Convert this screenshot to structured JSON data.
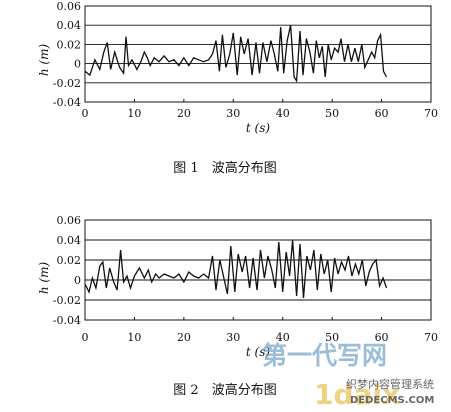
{
  "chart_data": [
    {
      "type": "line",
      "caption": "图 1　波高分布图",
      "xlabel": "t (s)",
      "ylabel": "h (m)",
      "xlim": [
        0,
        70
      ],
      "ylim": [
        -0.04,
        0.06
      ],
      "xticks": [
        0,
        10,
        20,
        30,
        40,
        50,
        60,
        70
      ],
      "yticks": [
        -0.04,
        -0.02,
        0,
        0.02,
        0.04,
        0.06
      ],
      "ytick_labels": [
        "-0.04",
        "-0.02",
        "0",
        "0.02",
        "0.04",
        "0.06"
      ],
      "grid": "horizontal",
      "series": [
        {
          "x": [
            0,
            1,
            2,
            3,
            3.8,
            4.5,
            5.2,
            6,
            7,
            7.8,
            8.3,
            8.8,
            9.5,
            10.5,
            11.3,
            12,
            12.6,
            13.2,
            14,
            15,
            16,
            17,
            18,
            19,
            20,
            21,
            22,
            23,
            24,
            25,
            25.8,
            26.5,
            27.2,
            27.8,
            28.5,
            29.3,
            30,
            30.8,
            31.5,
            32.2,
            33,
            33.8,
            34.6,
            35.3,
            36,
            36.8,
            37.6,
            38.3,
            39,
            39.6,
            40.2,
            40.9,
            41.6,
            42.3,
            42.8,
            43.5,
            44.1,
            44.8,
            45.5,
            46.2,
            46.8,
            47.4,
            48,
            48.6,
            49.2,
            49.8,
            50.5,
            51.2,
            51.8,
            52.5,
            53.2,
            53.9,
            54.6,
            55.3,
            56,
            56.6,
            57.3,
            58,
            58.6,
            59.2,
            59.8,
            60.4,
            61
          ],
          "y": [
            -0.008,
            -0.012,
            0.004,
            -0.006,
            0.012,
            0.022,
            -0.006,
            0.012,
            -0.004,
            -0.01,
            0.028,
            -0.002,
            0.004,
            -0.006,
            0.002,
            0.012,
            0.006,
            -0.002,
            0.006,
            0.002,
            0.008,
            0.002,
            0.004,
            -0.002,
            0.006,
            -0.002,
            0.006,
            0.004,
            0.002,
            0.004,
            0.01,
            0.024,
            -0.008,
            0.03,
            -0.004,
            0.01,
            0.032,
            -0.012,
            0.028,
            0.01,
            0.026,
            -0.012,
            0.022,
            -0.01,
            0.022,
            0.002,
            0.024,
            0.01,
            -0.008,
            0.038,
            -0.01,
            0.024,
            0.04,
            -0.014,
            -0.018,
            0.034,
            -0.012,
            0.026,
            0.012,
            -0.01,
            0.024,
            0.006,
            0.018,
            -0.014,
            0.02,
            0.004,
            0.016,
            0.012,
            0.026,
            0.002,
            0.02,
            0.002,
            0.016,
            0.002,
            0.02,
            -0.004,
            0.004,
            0.012,
            0.006,
            0.024,
            0.03,
            -0.008,
            -0.014
          ]
        }
      ]
    },
    {
      "type": "line",
      "caption": "图 2　波高分布图",
      "xlabel": "t (s)",
      "ylabel": "h (m)",
      "xlim": [
        0,
        70
      ],
      "ylim": [
        -0.04,
        0.06
      ],
      "xticks": [
        0,
        10,
        20,
        30,
        40,
        50,
        60,
        70
      ],
      "yticks": [
        -0.04,
        -0.02,
        0,
        0.02,
        0.04,
        0.06
      ],
      "ytick_labels": [
        "-0.04",
        "-0.02",
        "0",
        "0.02",
        "0.04",
        "0.06"
      ],
      "grid": "horizontal",
      "series": [
        {
          "x": [
            0,
            0.8,
            1.5,
            2.2,
            3,
            3.6,
            4.3,
            5,
            5.8,
            6.5,
            7.2,
            7.8,
            8.5,
            9.2,
            10,
            11,
            12,
            12.8,
            13.5,
            14.3,
            15,
            16,
            17,
            18,
            19,
            20,
            21,
            22,
            23,
            24,
            25,
            25.8,
            26.5,
            27.3,
            28,
            28.8,
            29.5,
            30.3,
            31,
            31.8,
            32.5,
            33.3,
            34,
            34.8,
            35.5,
            36.3,
            37,
            37.8,
            38.5,
            39.2,
            40,
            40.7,
            41.4,
            42,
            42.8,
            43.5,
            44.2,
            44.9,
            45.6,
            46.3,
            47,
            47.7,
            48.4,
            49.1,
            49.8,
            50.5,
            51.2,
            51.9,
            52.6,
            53.3,
            54,
            54.7,
            55.4,
            56.1,
            56.8,
            57.5,
            58.2,
            58.9,
            59.6,
            60.3,
            61
          ],
          "y": [
            -0.004,
            -0.012,
            0.002,
            -0.008,
            0.014,
            0.018,
            -0.008,
            0.012,
            -0.002,
            -0.01,
            0.03,
            -0.002,
            0.004,
            -0.008,
            0.004,
            0.012,
            0.002,
            0.01,
            -0.002,
            0.006,
            0.002,
            0.006,
            0.004,
            0.002,
            0.006,
            -0.002,
            0.008,
            0.004,
            0.002,
            0.006,
            0.002,
            0.024,
            -0.01,
            0.02,
            0.004,
            -0.014,
            0.034,
            -0.012,
            0.026,
            0.008,
            0.024,
            -0.008,
            0.022,
            -0.01,
            0.03,
            0.002,
            0.024,
            0.01,
            -0.008,
            0.038,
            -0.012,
            0.028,
            0.004,
            0.04,
            -0.016,
            0.036,
            -0.018,
            0.024,
            0.01,
            0.03,
            -0.01,
            0.026,
            0.006,
            0.02,
            -0.012,
            0.022,
            0.006,
            0.018,
            0.01,
            0.024,
            0.004,
            0.016,
            0.006,
            0.02,
            -0.006,
            0.008,
            0.016,
            0.02,
            -0.006,
            0.002,
            -0.008
          ]
        }
      ]
    }
  ],
  "watermark": {
    "logo_text": "第一代写网",
    "logo_latin": "1daix",
    "subtitle": "织梦内容管理系统",
    "url": "DEDECMS.COM"
  }
}
